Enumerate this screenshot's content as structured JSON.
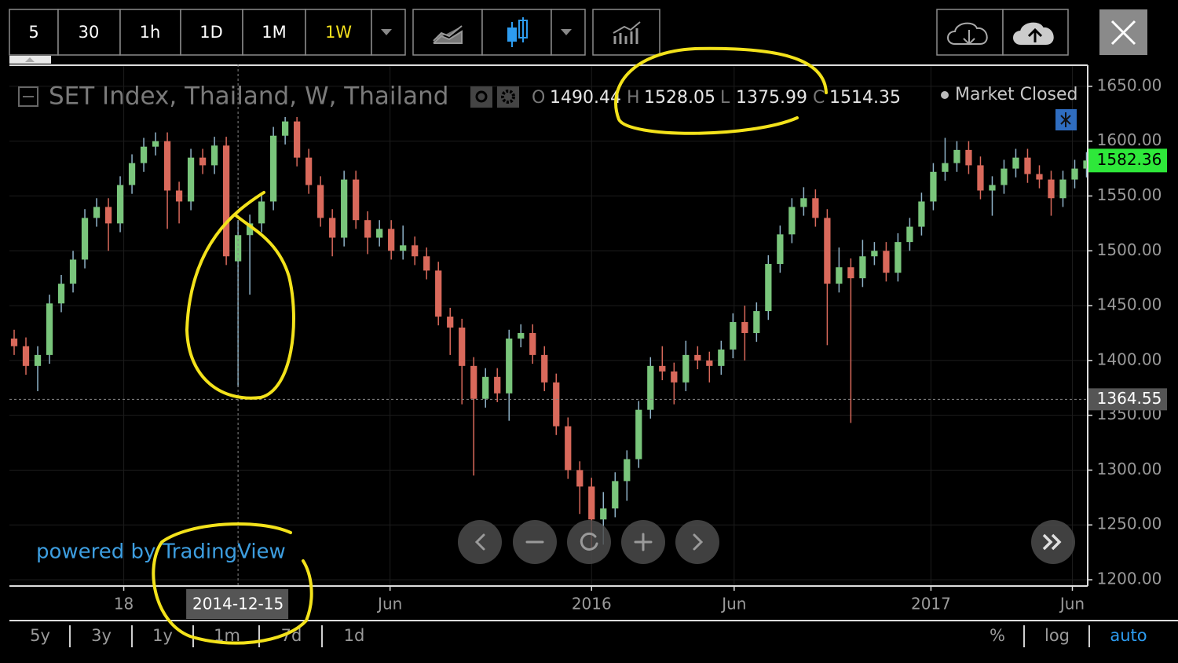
{
  "toolbar": {
    "intervals": [
      "5",
      "30",
      "1h",
      "1D",
      "1M",
      "1W"
    ]
  },
  "chart_data": {
    "type": "candlestick",
    "title": "SET Index, Thailand, W, Thailand",
    "status": "Market Closed",
    "credit": "powered by TradingView",
    "ohlc_labels": [
      "O",
      "H",
      "L",
      "C"
    ],
    "up_color": "#79c57b",
    "down_color": "#d9695b",
    "open": [
      1420,
      1413,
      1395,
      1405,
      1452,
      1470,
      1492,
      1530,
      1540,
      1525,
      1560,
      1580,
      1595,
      1600,
      1555,
      1545,
      1585,
      1578,
      1596,
      1490.44,
      1514.35,
      1525,
      1545,
      1605,
      1618,
      1585,
      1560,
      1530,
      1512,
      1565,
      1528,
      1512,
      1520,
      1500,
      1505,
      1495,
      1482,
      1440,
      1430,
      1395,
      1365,
      1385,
      1370,
      1420,
      1425,
      1405,
      1380,
      1340,
      1300,
      1285,
      1255,
      1265,
      1290,
      1310,
      1355,
      1395,
      1390,
      1380,
      1405,
      1400,
      1395,
      1410,
      1435,
      1425,
      1445,
      1488,
      1515,
      1540,
      1548,
      1530,
      1470,
      1485,
      1475,
      1495,
      1500,
      1480,
      1508,
      1522,
      1545,
      1572,
      1580,
      1592,
      1578,
      1555,
      1560,
      1575,
      1585,
      1570,
      1565,
      1548,
      1565,
      1575
    ],
    "high": [
      1428,
      1421,
      1413,
      1460,
      1478,
      1500,
      1538,
      1548,
      1548,
      1568,
      1588,
      1603,
      1608,
      1608,
      1563,
      1593,
      1593,
      1604,
      1604,
      1528.05,
      1533,
      1553,
      1613,
      1622,
      1622,
      1593,
      1568,
      1538,
      1573,
      1573,
      1536,
      1528,
      1528,
      1523,
      1513,
      1503,
      1490,
      1448,
      1438,
      1403,
      1393,
      1393,
      1428,
      1433,
      1433,
      1413,
      1388,
      1348,
      1308,
      1293,
      1280,
      1298,
      1318,
      1363,
      1403,
      1413,
      1398,
      1418,
      1413,
      1408,
      1418,
      1443,
      1450,
      1453,
      1496,
      1523,
      1548,
      1558,
      1556,
      1538,
      1503,
      1493,
      1510,
      1508,
      1508,
      1516,
      1530,
      1553,
      1580,
      1603,
      1600,
      1600,
      1586,
      1568,
      1583,
      1593,
      1593,
      1578,
      1573,
      1573,
      1583,
      1590
    ],
    "low": [
      1405,
      1387,
      1372,
      1397,
      1444,
      1462,
      1484,
      1522,
      1500,
      1517,
      1552,
      1572,
      1587,
      1520,
      1525,
      1537,
      1570,
      1570,
      1487,
      1375.99,
      1460,
      1517,
      1537,
      1597,
      1577,
      1552,
      1522,
      1495,
      1504,
      1520,
      1497,
      1504,
      1492,
      1492,
      1487,
      1474,
      1432,
      1405,
      1360,
      1295,
      1357,
      1362,
      1345,
      1412,
      1397,
      1372,
      1332,
      1292,
      1260,
      1227,
      1232,
      1257,
      1272,
      1302,
      1347,
      1382,
      1360,
      1372,
      1392,
      1380,
      1387,
      1402,
      1400,
      1417,
      1437,
      1480,
      1507,
      1532,
      1522,
      1414,
      1462,
      1343,
      1467,
      1487,
      1472,
      1472,
      1500,
      1514,
      1537,
      1564,
      1572,
      1570,
      1547,
      1532,
      1552,
      1567,
      1562,
      1557,
      1532,
      1540,
      1557,
      1567
    ],
    "close": [
      1413,
      1395,
      1405,
      1452,
      1470,
      1492,
      1530,
      1540,
      1525,
      1560,
      1580,
      1595,
      1600,
      1555,
      1545,
      1585,
      1578,
      1596,
      1495,
      1514.35,
      1525,
      1545,
      1605,
      1618,
      1585,
      1560,
      1530,
      1512,
      1565,
      1528,
      1512,
      1520,
      1500,
      1505,
      1495,
      1482,
      1440,
      1430,
      1395,
      1365,
      1385,
      1370,
      1420,
      1425,
      1405,
      1380,
      1340,
      1300,
      1285,
      1255,
      1265,
      1290,
      1310,
      1355,
      1395,
      1390,
      1380,
      1405,
      1400,
      1395,
      1410,
      1435,
      1425,
      1445,
      1488,
      1515,
      1540,
      1548,
      1530,
      1470,
      1485,
      1475,
      1495,
      1500,
      1480,
      1508,
      1522,
      1545,
      1572,
      1580,
      1592,
      1578,
      1555,
      1560,
      1575,
      1585,
      1570,
      1565,
      1548,
      1565,
      1575,
      1582.36
    ],
    "xlim": [
      -1.2,
      91.1
    ],
    "xticks": [
      {
        "value": 9.3,
        "label": "18"
      },
      {
        "value": 31.9,
        "label": "Jun"
      },
      {
        "value": 49,
        "label": "2016"
      },
      {
        "value": 61.1,
        "label": "Jun"
      },
      {
        "value": 77.8,
        "label": "2017"
      },
      {
        "value": 89.8,
        "label": "Jun"
      }
    ],
    "ylim": [
      1195,
      1670
    ],
    "yticks": [
      {
        "value": 1200,
        "label": "1200.00"
      },
      {
        "value": 1250,
        "label": "1250.00"
      },
      {
        "value": 1300,
        "label": "1300.00"
      },
      {
        "value": 1350,
        "label": "1350.00"
      },
      {
        "value": 1400,
        "label": "1400.00"
      },
      {
        "value": 1450,
        "label": "1450.00"
      },
      {
        "value": 1500,
        "label": "1500.00"
      },
      {
        "value": 1550,
        "label": "1550.00"
      },
      {
        "value": 1600,
        "label": "1600.00"
      },
      {
        "value": 1650,
        "label": "1650.00"
      }
    ],
    "grid": true,
    "crosshair": {
      "x": 19,
      "x_label": "2014-12-15",
      "y": 1364.55
    }
  },
  "range_buttons": [
    "5y",
    "3y",
    "1y",
    "1m",
    "7d",
    "1d"
  ],
  "scale_buttons": [
    "%",
    "log",
    "auto"
  ]
}
